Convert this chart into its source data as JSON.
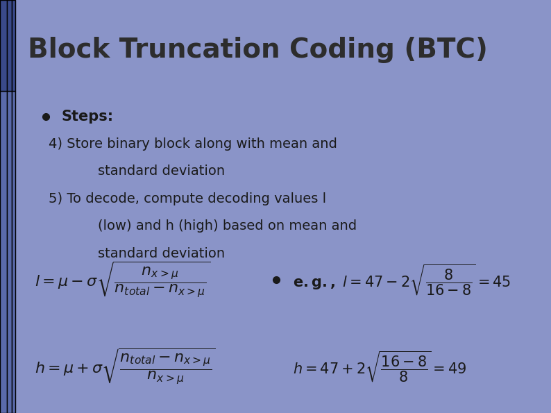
{
  "title": "Block Truncation Coding (BTC)",
  "title_color": "#2d2d2d",
  "title_bg_color": "#8a94c8",
  "body_bg_color": "#f0f0f0",
  "left_bar_color": "#5a6aaa",
  "slide_bg_color": "#8a94c8",
  "bullet_text": "Steps:",
  "line1": "4) Store binary block along with mean and",
  "line2": "    standard deviation",
  "line3": "5) To decode, compute decoding values l",
  "line4": "    (low) and h (high) based on mean and",
  "line5": "    standard deviation",
  "formula_l": "$l = \\mu - \\sigma\\sqrt{\\dfrac{n_{x>\\mu}}{n_{total} - n_{x>\\mu}}}$",
  "formula_h": "$h = \\mu + \\sigma\\sqrt{\\dfrac{n_{total} - n_{x>\\mu}}{n_{x>\\mu}}}$",
  "eg_bullet": "e.g.,",
  "formula_eg_l": "$l = 47 - 2\\sqrt{\\dfrac{8}{16-8}} = 45$",
  "formula_eg_h": "$h = 47 + 2\\sqrt{\\dfrac{16-8}{8}} = 49$",
  "text_color": "#1a1a1a",
  "figwidth": 7.94,
  "figheight": 5.95
}
